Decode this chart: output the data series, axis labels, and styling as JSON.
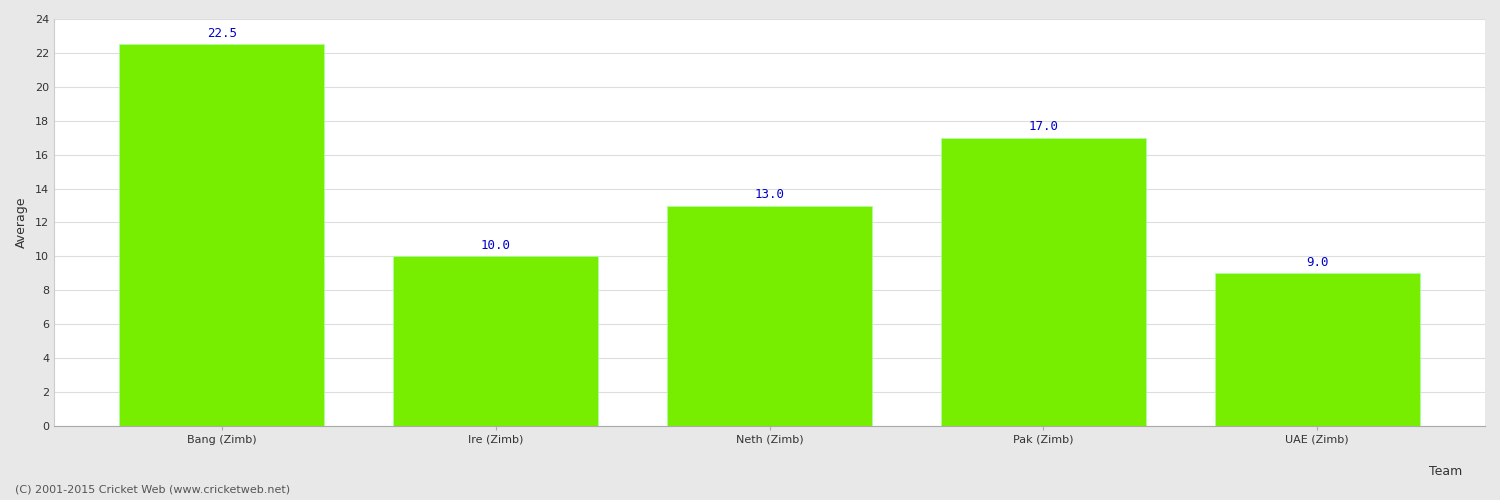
{
  "categories": [
    "Bang (Zimb)",
    "Ire (Zimb)",
    "Neth (Zimb)",
    "Pak (Zimb)",
    "UAE (Zimb)"
  ],
  "values": [
    22.5,
    10.0,
    13.0,
    17.0,
    9.0
  ],
  "bar_color": "#77ee00",
  "bar_edge_color": "#aaffaa",
  "label_color": "#0000cc",
  "label_fontsize": 9,
  "ylabel": "Average",
  "xlabel": "Team",
  "ylim": [
    0,
    24
  ],
  "yticks": [
    0,
    2,
    4,
    6,
    8,
    10,
    12,
    14,
    16,
    18,
    20,
    22,
    24
  ],
  "grid_color": "#dddddd",
  "background_color": "#e8e8e8",
  "axes_background": "#ffffff",
  "footer": "(C) 2001-2015 Cricket Web (www.cricketweb.net)",
  "footer_fontsize": 8,
  "footer_color": "#555555",
  "tick_label_fontsize": 8,
  "axis_label_fontsize": 9,
  "bar_width": 0.75
}
